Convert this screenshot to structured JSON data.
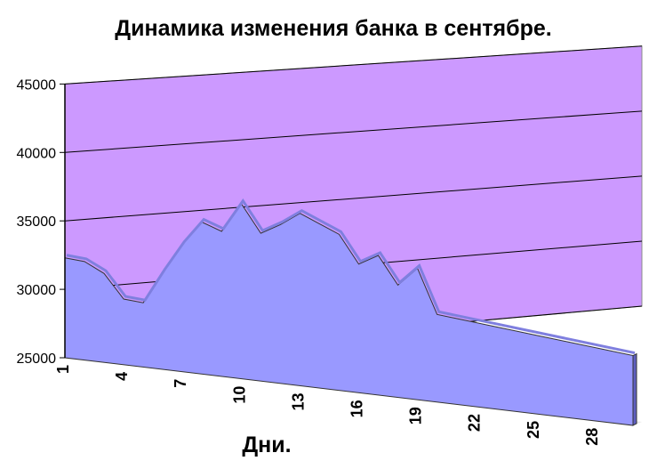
{
  "chart_data": {
    "type": "area",
    "title": "Динамика изменения банка в сентябре.",
    "xlabel": "Дни.",
    "ylabel": "",
    "ylim": [
      25000,
      45000
    ],
    "yticks": [
      "25000",
      "30000",
      "35000",
      "40000",
      "45000"
    ],
    "xticks": [
      "1",
      "4",
      "7",
      "10",
      "13",
      "16",
      "19",
      "22",
      "25",
      "28"
    ],
    "grid": true,
    "legend": "none",
    "x": [
      1,
      2,
      3,
      4,
      5,
      6,
      7,
      8,
      9,
      10,
      11,
      12,
      13,
      14,
      15,
      16,
      17,
      18,
      19,
      20,
      30
    ],
    "values": [
      32300,
      32200,
      31500,
      29800,
      29700,
      32100,
      34300,
      36100,
      35600,
      37800,
      35800,
      36600,
      37600,
      37000,
      36400,
      34400,
      35200,
      33200,
      34600,
      31400,
      30100
    ],
    "colors": {
      "wall": "#cc99ff",
      "area": "#9999ff",
      "area_top": "#7f7fdf",
      "floor": "#e8e8e8",
      "gridline": "#000000"
    }
  }
}
